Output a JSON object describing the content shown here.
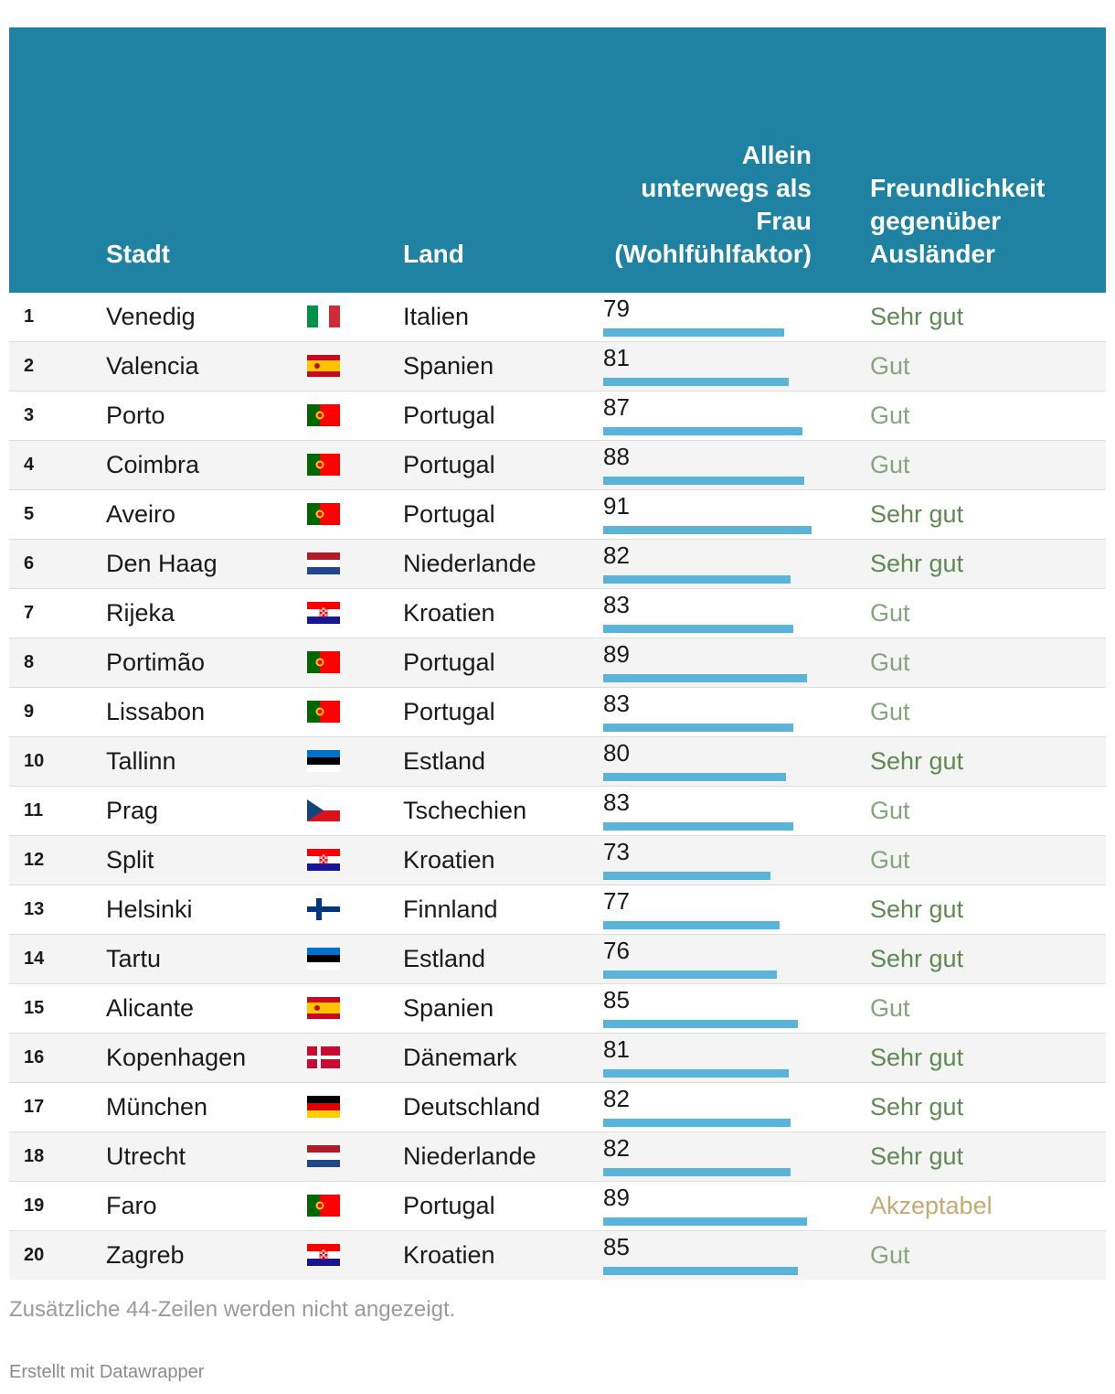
{
  "header": {
    "stadt": "Stadt",
    "land": "Land",
    "allein": [
      "Allein",
      "unterwegs als",
      "Frau",
      "(Wohlfühlfaktor)"
    ],
    "freundlichkeit": [
      "Freundlichkeit",
      "gegenüber",
      "Ausländer"
    ]
  },
  "colors": {
    "header_bg": "#1f82a3",
    "bar": "#5ab4d9",
    "sehr_gut": "#5e8a52",
    "gut": "#86a57c",
    "akzeptabel": "#c4aa73"
  },
  "chart_data": {
    "type": "table",
    "columns": [
      "",
      "Stadt",
      "",
      "Land",
      "Allein unterwegs als Frau (Wohlfühlfaktor)",
      "Freundlichkeit gegenüber Ausländer"
    ],
    "rows": [
      {
        "rank": "1",
        "city": "Venedig",
        "flag": "it-flag-icon",
        "land": "Italien",
        "value": 79,
        "rating": "Sehr gut"
      },
      {
        "rank": "2",
        "city": "Valencia",
        "flag": "es-flag-icon",
        "land": "Spanien",
        "value": 81,
        "rating": "Gut"
      },
      {
        "rank": "3",
        "city": "Porto",
        "flag": "pt-flag-icon",
        "land": "Portugal",
        "value": 87,
        "rating": "Gut"
      },
      {
        "rank": "4",
        "city": "Coimbra",
        "flag": "pt-flag-icon",
        "land": "Portugal",
        "value": 88,
        "rating": "Gut"
      },
      {
        "rank": "5",
        "city": "Aveiro",
        "flag": "pt-flag-icon",
        "land": "Portugal",
        "value": 91,
        "rating": "Sehr gut"
      },
      {
        "rank": "6",
        "city": "Den Haag",
        "flag": "nl-flag-icon",
        "land": "Niederlande",
        "value": 82,
        "rating": "Sehr gut"
      },
      {
        "rank": "7",
        "city": "Rijeka",
        "flag": "hr-flag-icon",
        "land": "Kroatien",
        "value": 83,
        "rating": "Gut"
      },
      {
        "rank": "8",
        "city": "Portimão",
        "flag": "pt-flag-icon",
        "land": "Portugal",
        "value": 89,
        "rating": "Gut"
      },
      {
        "rank": "9",
        "city": "Lissabon",
        "flag": "pt-flag-icon",
        "land": "Portugal",
        "value": 83,
        "rating": "Gut"
      },
      {
        "rank": "10",
        "city": "Tallinn",
        "flag": "ee-flag-icon",
        "land": "Estland",
        "value": 80,
        "rating": "Sehr gut"
      },
      {
        "rank": "11",
        "city": "Prag",
        "flag": "cz-flag-icon",
        "land": "Tschechien",
        "value": 83,
        "rating": "Gut"
      },
      {
        "rank": "12",
        "city": "Split",
        "flag": "hr-flag-icon",
        "land": "Kroatien",
        "value": 73,
        "rating": "Gut"
      },
      {
        "rank": "13",
        "city": "Helsinki",
        "flag": "fi-flag-icon",
        "land": "Finnland",
        "value": 77,
        "rating": "Sehr gut"
      },
      {
        "rank": "14",
        "city": "Tartu",
        "flag": "ee-flag-icon",
        "land": "Estland",
        "value": 76,
        "rating": "Sehr gut"
      },
      {
        "rank": "15",
        "city": "Alicante",
        "flag": "es-flag-icon",
        "land": "Spanien",
        "value": 85,
        "rating": "Gut"
      },
      {
        "rank": "16",
        "city": "Kopenhagen",
        "flag": "dk-flag-icon",
        "land": "Dänemark",
        "value": 81,
        "rating": "Sehr gut"
      },
      {
        "rank": "17",
        "city": "München",
        "flag": "de-flag-icon",
        "land": "Deutschland",
        "value": 82,
        "rating": "Sehr gut"
      },
      {
        "rank": "18",
        "city": "Utrecht",
        "flag": "nl-flag-icon",
        "land": "Niederlande",
        "value": 82,
        "rating": "Sehr gut"
      },
      {
        "rank": "19",
        "city": "Faro",
        "flag": "pt-flag-icon",
        "land": "Portugal",
        "value": 89,
        "rating": "Akzeptabel"
      },
      {
        "rank": "20",
        "city": "Zagreb",
        "flag": "hr-flag-icon",
        "land": "Kroatien",
        "value": 85,
        "rating": "Gut"
      }
    ]
  },
  "footnote": "Zusätzliche 44-Zeilen werden nicht angezeigt.",
  "credit": "Erstellt mit Datawrapper"
}
